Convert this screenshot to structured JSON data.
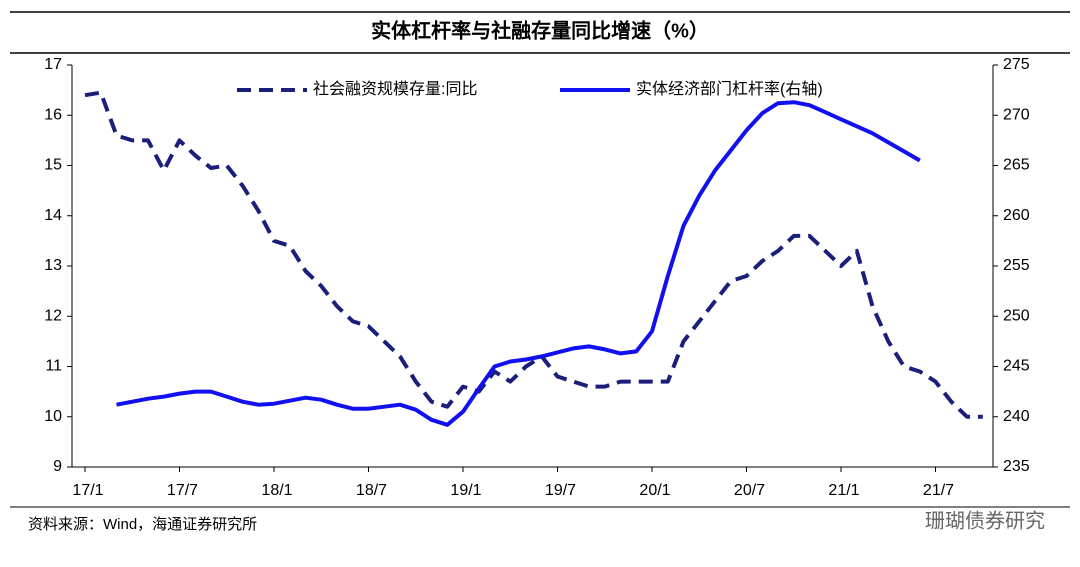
{
  "chart_data": {
    "type": "line",
    "title": "实体杠杆率与社融存量同比增速（%）",
    "source": "资料来源：Wind，海通证券研究所",
    "watermark": "珊瑚债券研究",
    "categories": [
      "17/1",
      null,
      null,
      null,
      null,
      null,
      "17/7",
      null,
      null,
      null,
      null,
      null,
      "18/1",
      null,
      null,
      null,
      null,
      null,
      "18/7",
      null,
      null,
      null,
      null,
      null,
      "19/1",
      null,
      null,
      null,
      null,
      null,
      "19/7",
      null,
      null,
      null,
      null,
      null,
      "20/1",
      null,
      null,
      null,
      null,
      null,
      "20/7",
      null,
      null,
      null,
      null,
      null,
      "21/1",
      null,
      null,
      null,
      null,
      null,
      "21/7",
      null,
      null,
      null
    ],
    "ylim": [
      9,
      17
    ],
    "yticks": [
      9,
      10,
      11,
      12,
      13,
      14,
      15,
      16,
      17
    ],
    "y2lim": [
      235,
      275
    ],
    "y2ticks": [
      235,
      240,
      245,
      250,
      255,
      260,
      265,
      270,
      275
    ],
    "legend": "top",
    "series": [
      {
        "name": "社会融资规模存量:同比",
        "color": "#1a1f7a",
        "dash": true,
        "values": [
          16.4,
          16.45,
          15.6,
          15.5,
          15.5,
          14.9,
          15.5,
          15.2,
          14.95,
          15.0,
          14.6,
          14.1,
          13.5,
          13.4,
          12.9,
          12.6,
          12.2,
          11.9,
          11.8,
          11.5,
          11.2,
          10.7,
          10.3,
          10.2,
          10.6,
          10.5,
          10.9,
          10.7,
          11.0,
          11.2,
          10.8,
          10.7,
          10.6,
          10.6,
          10.7,
          10.7,
          10.7,
          10.7,
          11.5,
          11.9,
          12.3,
          12.7,
          12.8,
          13.1,
          13.3,
          13.6,
          13.6,
          13.3,
          13.0,
          13.3,
          12.2,
          11.5,
          11.0,
          10.9,
          10.7,
          10.3,
          10.0,
          10.0
        ]
      },
      {
        "name": "实体经济部门杠杆率(右轴)",
        "color": "#1010f0",
        "axis": "y2",
        "values": [
          null,
          null,
          241.2,
          241.5,
          241.8,
          242.0,
          242.3,
          242.5,
          242.5,
          242.0,
          241.5,
          241.2,
          241.3,
          241.6,
          241.9,
          241.7,
          241.2,
          240.8,
          240.8,
          241.0,
          241.2,
          240.7,
          239.7,
          239.2,
          240.5,
          242.8,
          245.0,
          245.5,
          245.7,
          246.0,
          246.4,
          246.8,
          247.0,
          246.7,
          246.3,
          246.5,
          248.5,
          254.0,
          259.0,
          262.0,
          264.5,
          266.5,
          268.5,
          270.2,
          271.2,
          271.3,
          271.0,
          270.3,
          269.6,
          268.9,
          268.2,
          267.3,
          266.4,
          265.5,
          null,
          null,
          null,
          null
        ]
      }
    ]
  }
}
